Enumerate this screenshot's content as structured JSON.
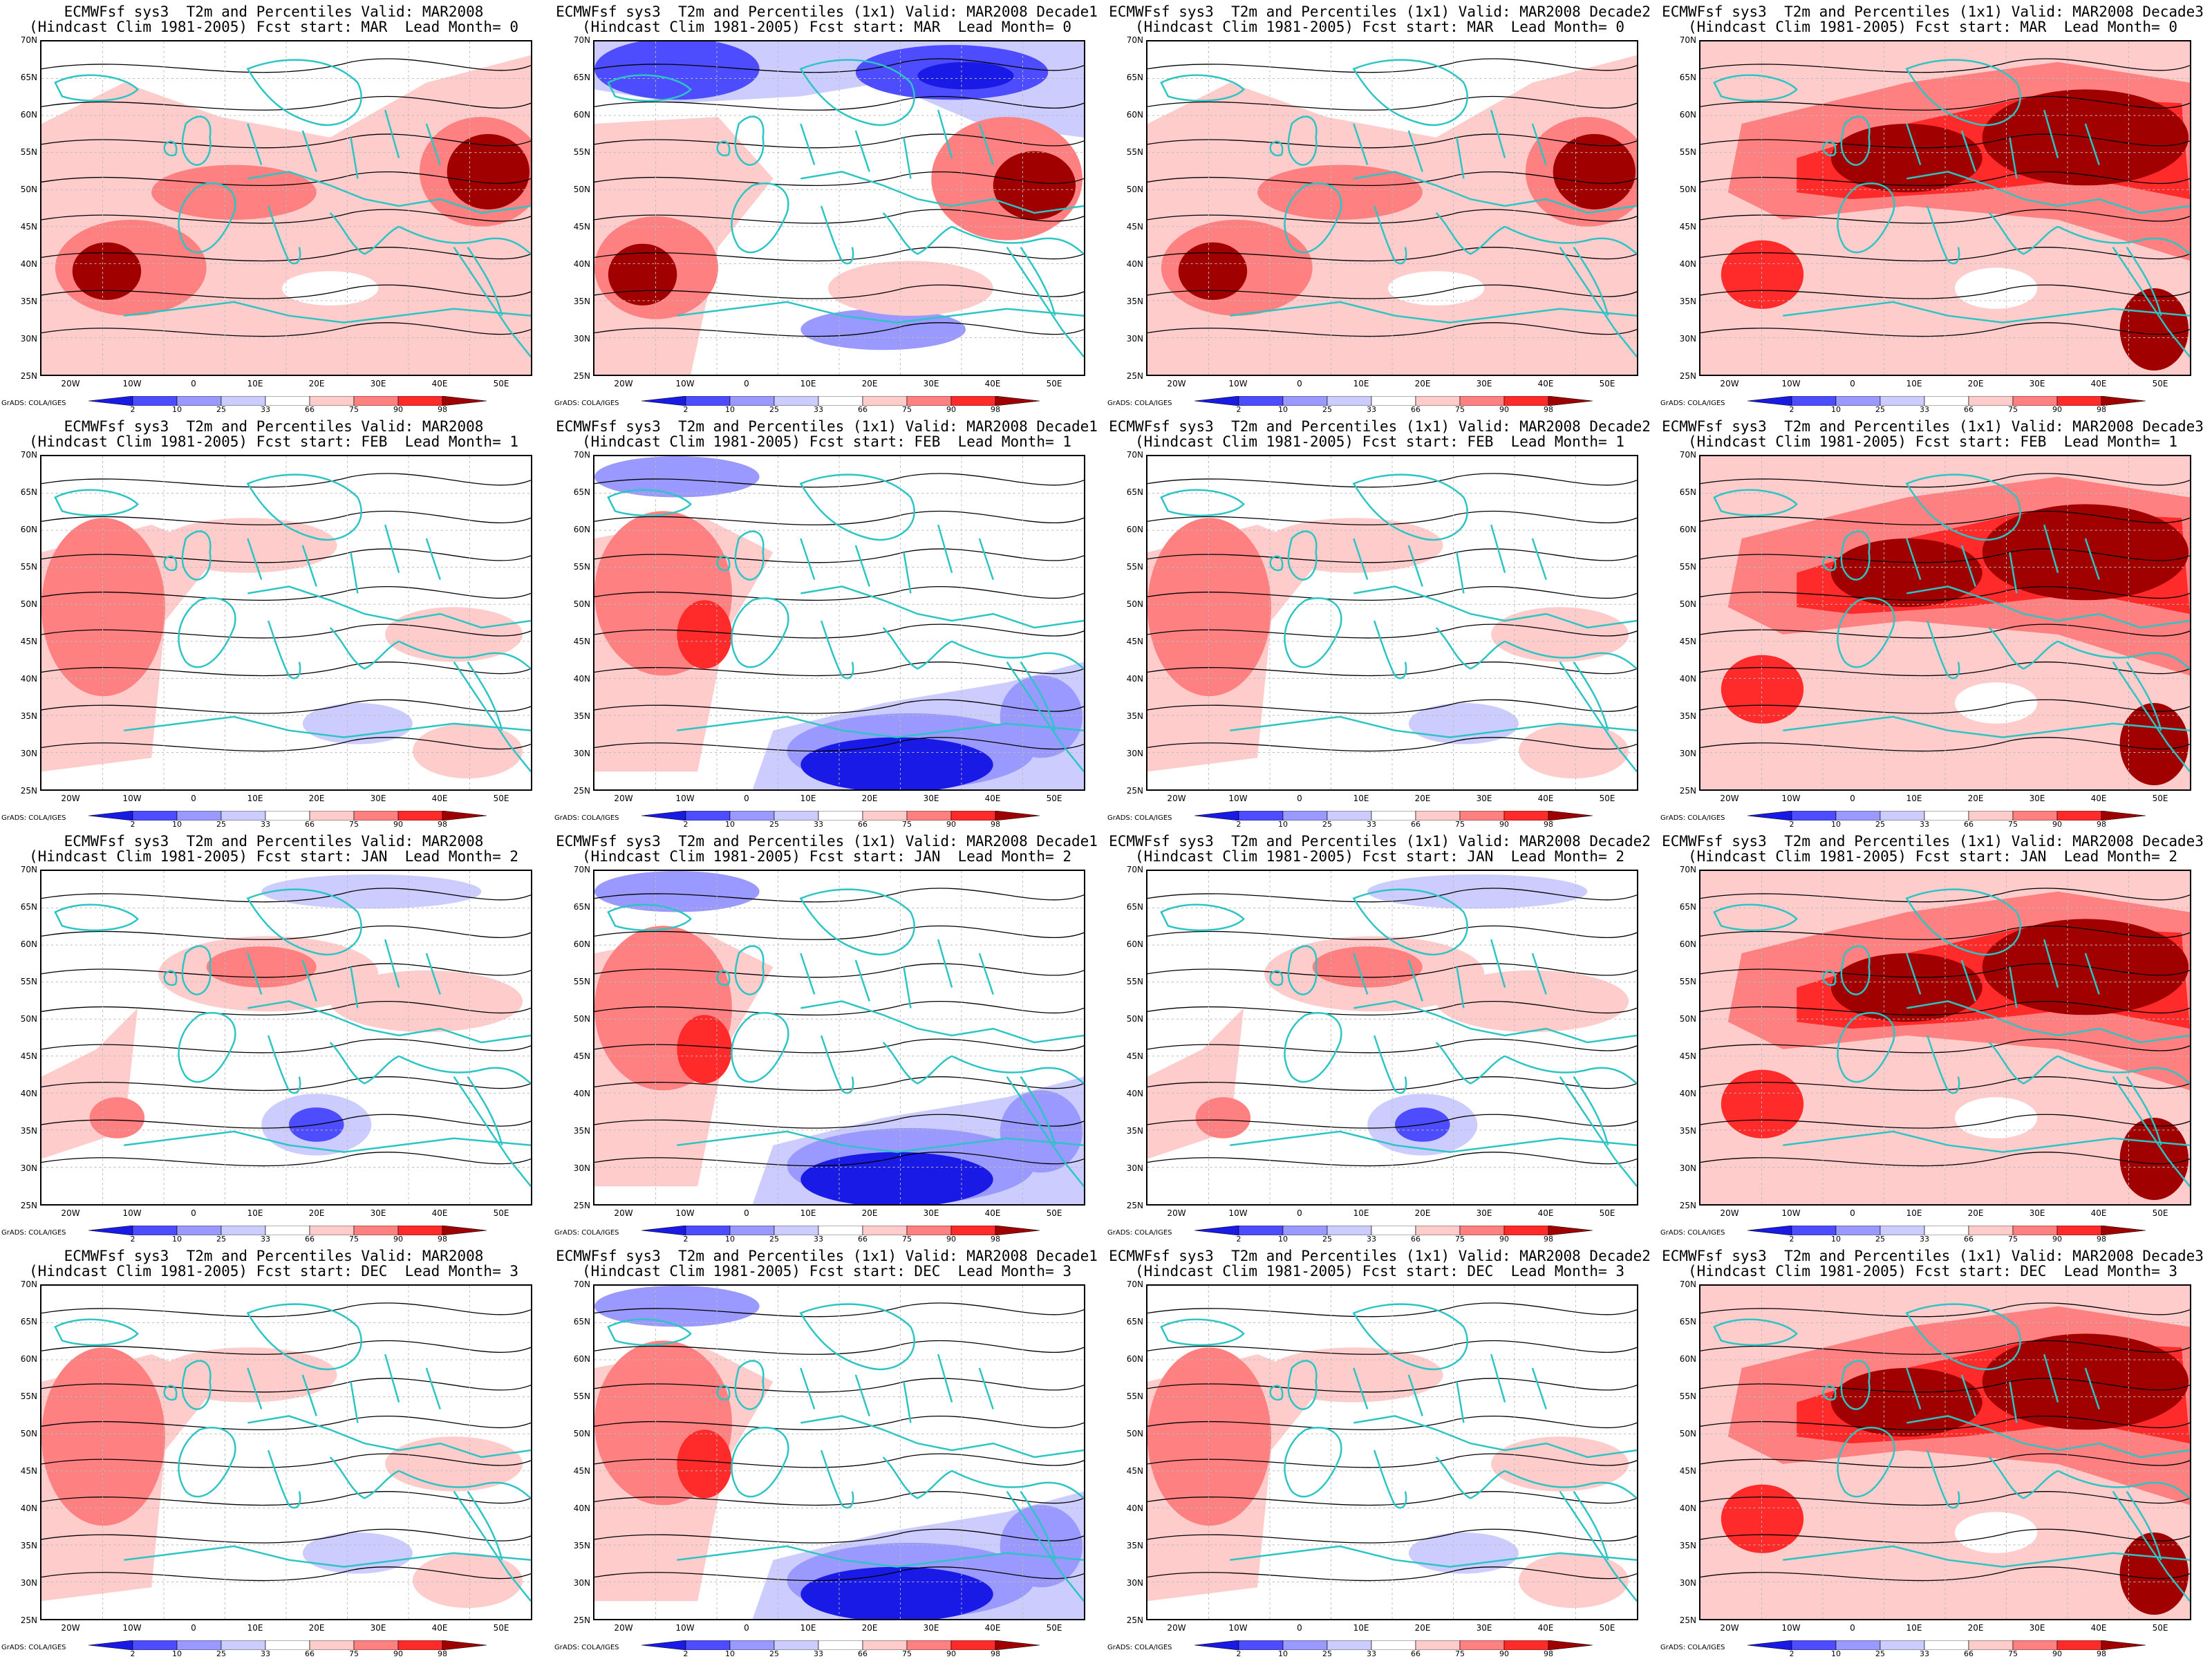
{
  "colors": {
    "coast": "#2cc4c4",
    "contour": "#000000",
    "scale": [
      "#1a1ae6",
      "#4d4dff",
      "#9999ff",
      "#ccccff",
      "#ffffff",
      "#ffcccc",
      "#ff8080",
      "#ff2a2a",
      "#a00000"
    ]
  },
  "common": {
    "ylabels": [
      "70N",
      "65N",
      "60N",
      "55N",
      "50N",
      "45N",
      "40N",
      "35N",
      "30N",
      "25N"
    ],
    "xlabels": [
      "20W",
      "10W",
      "0",
      "10E",
      "20E",
      "30E",
      "40E",
      "50E"
    ],
    "colorbar_labels": [
      "2",
      "10",
      "25",
      "33",
      "66",
      "75",
      "90",
      "98"
    ],
    "credit": "GrADS: COLA/IGES"
  },
  "panels": [
    {
      "line1": "ECMWFsf sys3  T2m and Percentiles Valid: MAR2008",
      "line2": "(Hindcast Clim 1981-2005) Fcst start: MAR  Lead Month= 0",
      "pattern": "warm-mixed"
    },
    {
      "line1": "ECMWFsf sys3  T2m and Percentiles (1x1) Valid: MAR2008 Decade1",
      "line2": "(Hindcast Clim 1981-2005) Fcst start: MAR  Lead Month= 0",
      "pattern": "cold-north"
    },
    {
      "line1": "ECMWFsf sys3  T2m and Percentiles (1x1) Valid: MAR2008 Decade2",
      "line2": "(Hindcast Clim 1981-2005) Fcst start: MAR  Lead Month= 0",
      "pattern": "warm-mixed"
    },
    {
      "line1": "ECMWFsf sys3  T2m and Percentiles (1x1) Valid: MAR2008 Decade3",
      "line2": "(Hindcast Clim 1981-2005) Fcst start: MAR  Lead Month= 0",
      "pattern": "very-warm"
    },
    {
      "line1": "ECMWFsf sys3  T2m and Percentiles Valid: MAR2008",
      "line2": "(Hindcast Clim 1981-2005) Fcst start: FEB  Lead Month= 1",
      "pattern": "mild-west"
    },
    {
      "line1": "ECMWFsf sys3  T2m and Percentiles (1x1) Valid: MAR2008 Decade1",
      "line2": "(Hindcast Clim 1981-2005) Fcst start: FEB  Lead Month= 1",
      "pattern": "west-warm-south-cold"
    },
    {
      "line1": "ECMWFsf sys3  T2m and Percentiles (1x1) Valid: MAR2008 Decade2",
      "line2": "(Hindcast Clim 1981-2005) Fcst start: FEB  Lead Month= 1",
      "pattern": "mild-west"
    },
    {
      "line1": "ECMWFsf sys3  T2m and Percentiles (1x1) Valid: MAR2008 Decade3",
      "line2": "(Hindcast Clim 1981-2005) Fcst start: FEB  Lead Month= 1",
      "pattern": "very-warm"
    },
    {
      "line1": "ECMWFsf sys3  T2m and Percentiles Valid: MAR2008",
      "line2": "(Hindcast Clim 1981-2005) Fcst start: JAN  Lead Month= 2",
      "pattern": "mild-central"
    },
    {
      "line1": "ECMWFsf sys3  T2m and Percentiles (1x1) Valid: MAR2008 Decade1",
      "line2": "(Hindcast Clim 1981-2005) Fcst start: JAN  Lead Month= 2",
      "pattern": "west-warm-south-cold"
    },
    {
      "line1": "ECMWFsf sys3  T2m and Percentiles (1x1) Valid: MAR2008 Decade2",
      "line2": "(Hindcast Clim 1981-2005) Fcst start: JAN  Lead Month= 2",
      "pattern": "mild-central"
    },
    {
      "line1": "ECMWFsf sys3  T2m and Percentiles (1x1) Valid: MAR2008 Decade3",
      "line2": "(Hindcast Clim 1981-2005) Fcst start: JAN  Lead Month= 2",
      "pattern": "very-warm"
    },
    {
      "line1": "ECMWFsf sys3  T2m and Percentiles Valid: MAR2008",
      "line2": "(Hindcast Clim 1981-2005) Fcst start: DEC  Lead Month= 3",
      "pattern": "mild-west"
    },
    {
      "line1": "ECMWFsf sys3  T2m and Percentiles (1x1) Valid: MAR2008 Decade1",
      "line2": "(Hindcast Clim 1981-2005) Fcst start: DEC  Lead Month= 3",
      "pattern": "west-warm-south-cold"
    },
    {
      "line1": "ECMWFsf sys3  T2m and Percentiles (1x1) Valid: MAR2008 Decade2",
      "line2": "(Hindcast Clim 1981-2005) Fcst start: DEC  Lead Month= 3",
      "pattern": "mild-west"
    },
    {
      "line1": "ECMWFsf sys3  T2m and Percentiles (1x1) Valid: MAR2008 Decade3",
      "line2": "(Hindcast Clim 1981-2005) Fcst start: DEC  Lead Month= 3",
      "pattern": "very-warm"
    }
  ]
}
